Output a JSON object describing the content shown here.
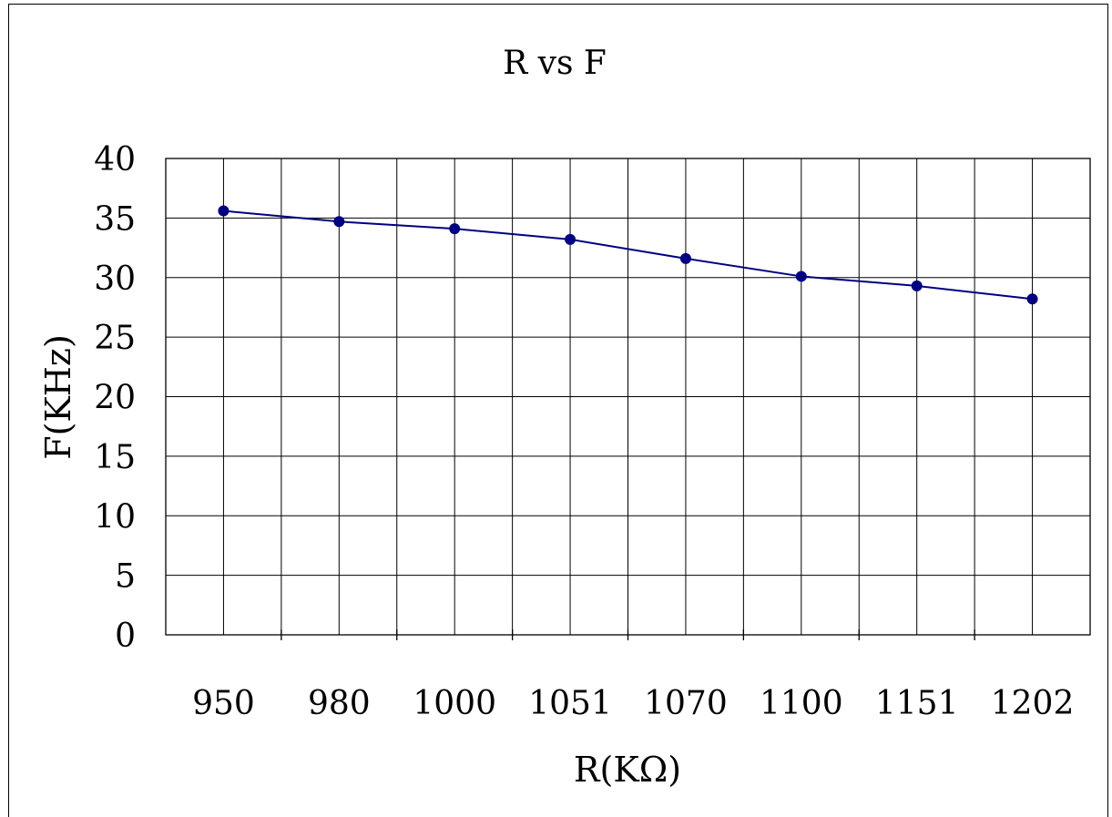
{
  "chart_data": {
    "type": "line",
    "title": "R vs F",
    "xlabel": "R(KΩ)",
    "ylabel": "F(KHz)",
    "categories": [
      "950",
      "980",
      "1000",
      "1051",
      "1070",
      "1100",
      "1151",
      "1202"
    ],
    "series": [
      {
        "values": [
          35.6,
          34.7,
          34.1,
          33.2,
          31.6,
          30.1,
          29.3,
          28.2
        ],
        "color": "#000080"
      }
    ],
    "ylim": [
      0,
      40
    ],
    "y_ticks": [
      "0",
      "5",
      "10",
      "15",
      "20",
      "25",
      "30",
      "35",
      "40"
    ],
    "grid": true,
    "legend": "none"
  }
}
